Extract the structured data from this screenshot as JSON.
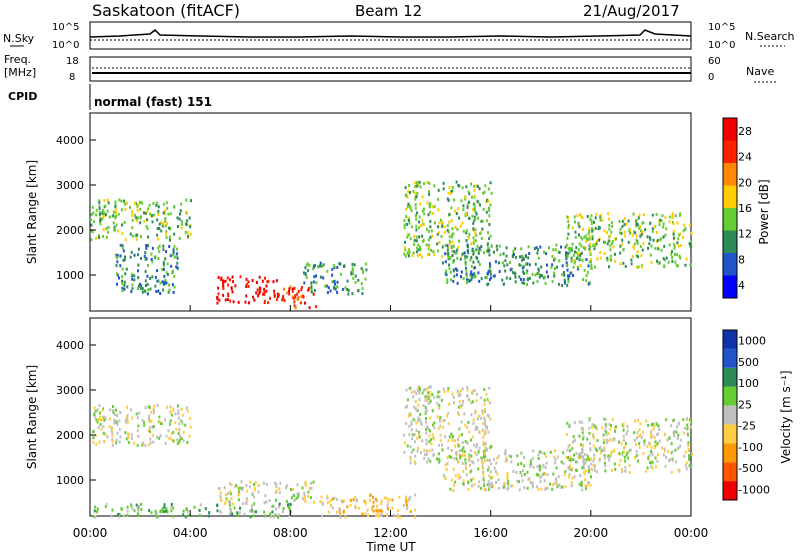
{
  "header": {
    "site": "Saskatoon (fitACF)",
    "beam": "Beam 12",
    "date": "21/Aug/2017"
  },
  "summary_panels": {
    "nsky_label": "N.Sky",
    "nsearch_label": "N.Search",
    "nsky_ticks": [
      "10^5",
      "10^0"
    ],
    "nsearch_ticks": [
      "10^5",
      "10^0"
    ],
    "freq_label_1": "Freq.",
    "freq_label_2": "[MHz]",
    "freq_ticks": [
      "18",
      "8"
    ],
    "nave_label": "Nave",
    "nave_ticks": [
      "60",
      "0"
    ],
    "cpid_label": "CPID",
    "cpid_value": "normal (fast) 151"
  },
  "chart_data": [
    {
      "type": "heatmap",
      "panel": "power",
      "ylabel": "Slant Range [km]",
      "yticks": [
        "1000",
        "2000",
        "3000",
        "4000"
      ],
      "ylim": [
        200,
        4600
      ],
      "colorbar_label": "Power [dB]",
      "colorbar_ticks": [
        "28",
        "24",
        "20",
        "16",
        "12",
        "8",
        "4"
      ],
      "colors": [
        "#0000ff",
        "#2255cc",
        "#2e8b57",
        "#66cc33",
        "#ffcc00",
        "#ff8800",
        "#ff2200",
        "#ee0000"
      ],
      "regions": [
        {
          "t0": 0.0,
          "t1": 4.0,
          "r0": 1800,
          "r1": 2700,
          "level": 3
        },
        {
          "t0": 1.0,
          "t1": 3.5,
          "r0": 600,
          "r1": 1700,
          "level": 2
        },
        {
          "t0": 5.0,
          "t1": 7.5,
          "r0": 400,
          "r1": 1000,
          "level": 7
        },
        {
          "t0": 7.5,
          "t1": 9.0,
          "r0": 300,
          "r1": 800,
          "level": 6
        },
        {
          "t0": 8.5,
          "t1": 11.0,
          "r0": 600,
          "r1": 1300,
          "level": 2
        },
        {
          "t0": 12.5,
          "t1": 16.0,
          "r0": 1400,
          "r1": 3100,
          "level": 3
        },
        {
          "t0": 14.0,
          "t1": 20.0,
          "r0": 800,
          "r1": 1700,
          "level": 2
        },
        {
          "t0": 19.0,
          "t1": 24.0,
          "r0": 1200,
          "r1": 2400,
          "level": 3
        }
      ]
    },
    {
      "type": "heatmap",
      "panel": "velocity",
      "ylabel": "Slant Range [km]",
      "yticks": [
        "1000",
        "2000",
        "3000",
        "4000"
      ],
      "ylim": [
        200,
        4600
      ],
      "xlabel": "Time UT",
      "xticks": [
        "00:00",
        "04:00",
        "08:00",
        "12:00",
        "16:00",
        "20:00",
        "00:00"
      ],
      "xlim": [
        0,
        24
      ],
      "colorbar_label": "Velocity [m s⁻¹]",
      "colorbar_ticks": [
        "1000",
        "500",
        "100",
        "25",
        "-25",
        "-100",
        "-500",
        "-1000"
      ],
      "colors": [
        "#ee0000",
        "#ff5500",
        "#ff9900",
        "#ffcc44",
        "#c0c0c0",
        "#66cc33",
        "#2e8b57",
        "#2255cc",
        "#1133aa"
      ],
      "regions": [
        {
          "t0": 0.0,
          "t1": 4.0,
          "r0": 1800,
          "r1": 2700,
          "level": 4
        },
        {
          "t0": 5.0,
          "t1": 9.0,
          "r0": 500,
          "r1": 1000,
          "level": 4
        },
        {
          "t0": 9.0,
          "t1": 13.0,
          "r0": 200,
          "r1": 700,
          "level": 3
        },
        {
          "t0": 12.5,
          "t1": 16.0,
          "r0": 1400,
          "r1": 3100,
          "level": 4
        },
        {
          "t0": 14.0,
          "t1": 20.0,
          "r0": 800,
          "r1": 1700,
          "level": 4
        },
        {
          "t0": 19.0,
          "t1": 24.0,
          "r0": 1200,
          "r1": 2400,
          "level": 4
        },
        {
          "t0": 0.0,
          "t1": 8.0,
          "r0": 200,
          "r1": 500,
          "level": 5
        }
      ]
    }
  ]
}
